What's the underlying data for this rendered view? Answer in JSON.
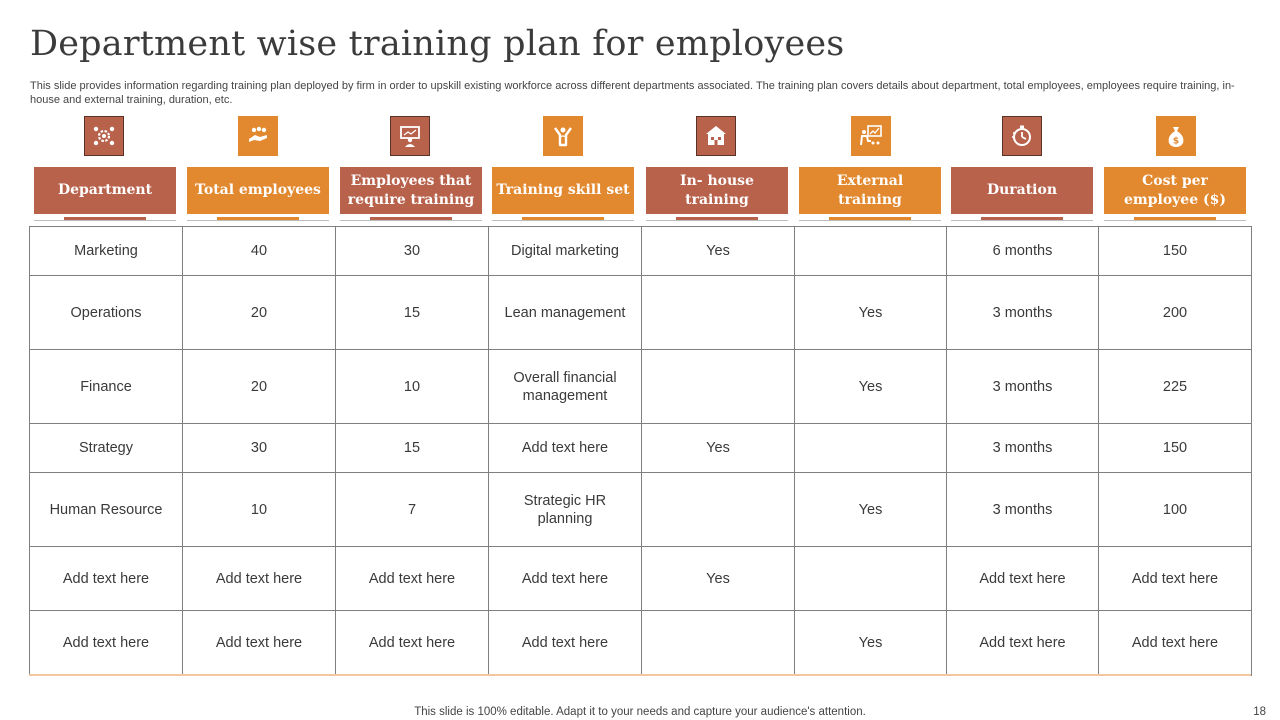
{
  "title": "Department wise training plan for employees",
  "subtitle": "This slide provides information regarding training plan deployed by firm in order to upskill existing workforce across different departments associated. The training plan covers details about department, total employees, employees require training, in-house and external training, duration, etc.",
  "colors": {
    "rust": "#b8624c",
    "orange": "#e2882e"
  },
  "columns": [
    {
      "label": "Department",
      "icon": "team-gear-icon"
    },
    {
      "label": "Total employees",
      "icon": "handshake-group-icon"
    },
    {
      "label": "Employees that require training",
      "icon": "presenter-board-icon"
    },
    {
      "label": "Training skill set",
      "icon": "person-celebrating-icon"
    },
    {
      "label": "In- house training",
      "icon": "building-icon"
    },
    {
      "label": "External training",
      "icon": "presentation-chart-icon"
    },
    {
      "label": "Duration",
      "icon": "stopwatch-icon"
    },
    {
      "label": "Cost per employee ($)",
      "icon": "money-bag-icon"
    }
  ],
  "rows": [
    [
      "Marketing",
      "40",
      "30",
      "Digital marketing",
      "Yes",
      "",
      "6 months",
      "150"
    ],
    [
      "Operations",
      "20",
      "15",
      "Lean management",
      "",
      "Yes",
      "3 months",
      "200"
    ],
    [
      "Finance",
      "20",
      "10",
      "Overall financial management",
      "",
      "Yes",
      "3 months",
      "225"
    ],
    [
      "Strategy",
      "30",
      "15",
      "Add text here",
      "Yes",
      "",
      "3 months",
      "150"
    ],
    [
      "Human Resource",
      "10",
      "7",
      "Strategic HR planning",
      "",
      "Yes",
      "3 months",
      "100"
    ],
    [
      "Add text here",
      "Add text here",
      "Add text here",
      "Add text here",
      "Yes",
      "",
      "Add text here",
      "Add text here"
    ],
    [
      "Add text here",
      "Add text here",
      "Add text here",
      "Add text here",
      "",
      "Yes",
      "Add text here",
      "Add text here"
    ]
  ],
  "footer": "This slide is 100% editable. Adapt it to your needs and capture your audience's attention.",
  "page_number": "18"
}
